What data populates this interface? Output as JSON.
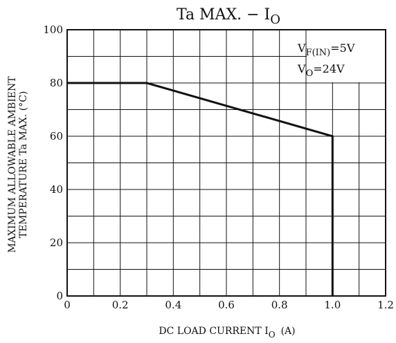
{
  "chart_data": {
    "type": "line",
    "title": {
      "main": "Ta MAX. − I",
      "sub": "O"
    },
    "xlabel": {
      "text": "DC LOAD CURRENT  I",
      "sub": "O",
      "unit": "(A)"
    },
    "ylabel": {
      "line1": "MAXIMUM ALLOWABLE AMBIENT",
      "line2": "TEMPERATURE   Ta MAX.  (°C)"
    },
    "xlim": [
      0,
      1.2
    ],
    "ylim": [
      0,
      100
    ],
    "x_ticks": [
      "0",
      "0.2",
      "0.4",
      "0.6",
      "0.8",
      "1.0",
      "1.2"
    ],
    "y_ticks": [
      "0",
      "20",
      "40",
      "60",
      "80",
      "100"
    ],
    "grid": true,
    "series": [
      {
        "x": [
          0,
          0.3,
          1.0,
          1.0
        ],
        "y": [
          80,
          80,
          60,
          0
        ]
      }
    ],
    "annotations": [
      {
        "main": "V",
        "sub": "F(IN)",
        "rest": "=5V"
      },
      {
        "main": "V",
        "sub": "O",
        "rest": "=24V"
      }
    ]
  }
}
